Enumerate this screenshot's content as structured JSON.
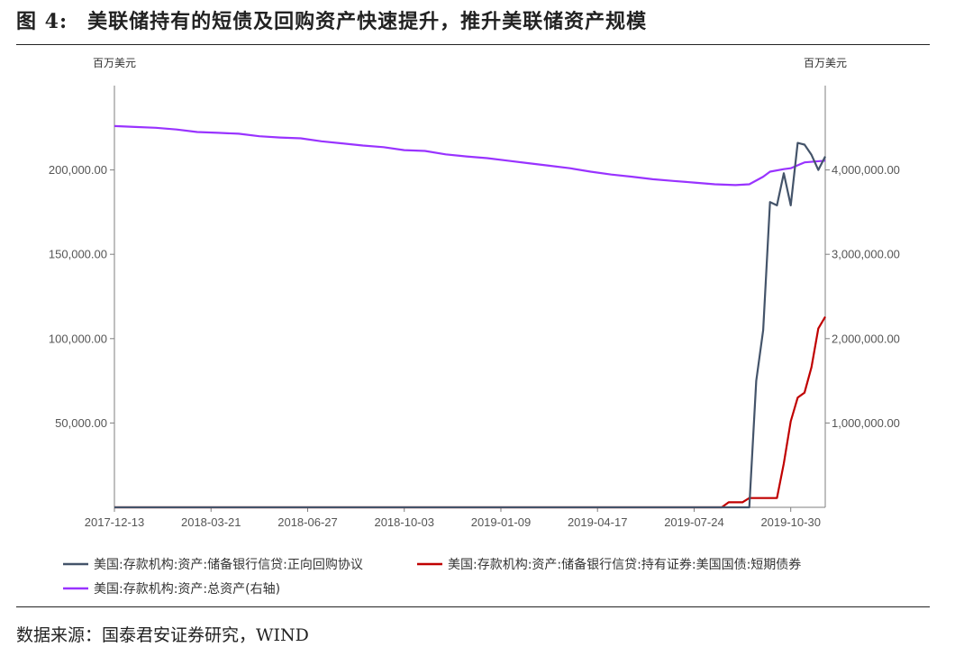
{
  "figure": {
    "label": "图 4:",
    "title": "美联储持有的短债及回购资产快速提升，推升美联储资产规模",
    "source": "数据来源：国泰君安证券研究，WIND"
  },
  "chart_data": {
    "type": "line",
    "left_unit": "百万美元",
    "right_unit": "百万美元",
    "x_tick_labels": [
      "2017-12-13",
      "2018-03-21",
      "2018-06-27",
      "2018-10-03",
      "2019-01-09",
      "2019-04-17",
      "2019-07-24",
      "2019-10-30"
    ],
    "y_left": {
      "min": 0,
      "max": 250000,
      "ticks": [
        50000,
        100000,
        150000,
        200000
      ],
      "tick_labels": [
        "50,000.00",
        "100,000.00",
        "150,000.00",
        "200,000.00"
      ]
    },
    "y_right": {
      "min": 0,
      "max": 5000000,
      "ticks": [
        1000000,
        2000000,
        3000000,
        4000000
      ],
      "tick_labels": [
        "1,000,000.00",
        "2,000,000.00",
        "3,000,000.00",
        "4,000,000.00"
      ]
    },
    "x_range": [
      0,
      103
    ],
    "series": [
      {
        "name": "美国:存款机构:资产:储备银行信贷:正向回购协议",
        "axis": "left",
        "color": "#44546a",
        "x": [
          0,
          92,
          93,
          94,
          95,
          96,
          97,
          98,
          99,
          100,
          101,
          102,
          103
        ],
        "y": [
          0,
          0,
          75000,
          105000,
          181000,
          179000,
          198000,
          179000,
          216000,
          215000,
          209000,
          200000,
          208000
        ]
      },
      {
        "name": "美国:存款机构:资产:储备银行信贷:持有证券:美国国债:短期债券",
        "axis": "left",
        "color": "#c00000",
        "x": [
          0,
          88,
          89,
          91,
          92,
          93,
          96,
          97,
          98,
          99,
          100,
          101,
          102,
          103
        ],
        "y": [
          0,
          0,
          3000,
          3000,
          5500,
          5500,
          5500,
          26000,
          51000,
          65000,
          68000,
          83000,
          106000,
          113000
        ]
      },
      {
        "name": "美国:存款机构:资产:总资产(右轴)",
        "axis": "right",
        "color": "#9933ff",
        "x": [
          0,
          3,
          6,
          9,
          12,
          15,
          18,
          21,
          24,
          27,
          30,
          33,
          36,
          39,
          42,
          45,
          48,
          51,
          54,
          57,
          60,
          63,
          66,
          69,
          72,
          75,
          78,
          81,
          84,
          87,
          90,
          92,
          94,
          95,
          97,
          98,
          100,
          103
        ],
        "y": [
          4520000,
          4510000,
          4500000,
          4480000,
          4450000,
          4440000,
          4430000,
          4400000,
          4385000,
          4375000,
          4340000,
          4315000,
          4290000,
          4270000,
          4235000,
          4225000,
          4185000,
          4160000,
          4140000,
          4110000,
          4080000,
          4050000,
          4020000,
          3980000,
          3945000,
          3920000,
          3890000,
          3870000,
          3850000,
          3830000,
          3820000,
          3830000,
          3920000,
          3980000,
          4010000,
          4020000,
          4090000,
          4110000
        ]
      }
    ]
  }
}
